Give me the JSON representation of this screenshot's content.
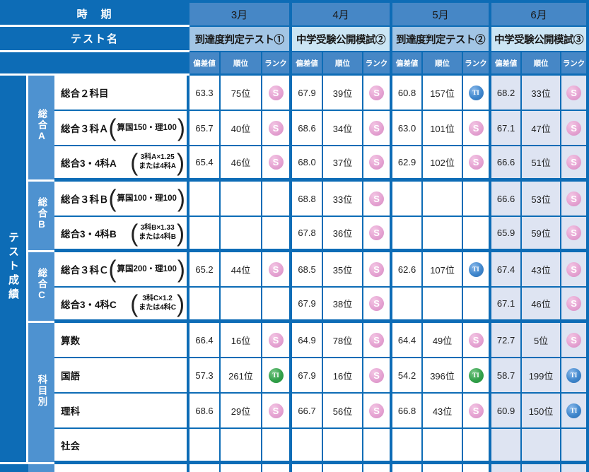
{
  "table": {
    "period_label": "時　期",
    "test_name_label": "テスト名",
    "results_label": "テスト成績",
    "metric_labels": [
      "偏差値",
      "順位",
      "ランク"
    ],
    "note_parens": [
      "(",
      ")"
    ],
    "months": [
      {
        "label": "3月",
        "test_name": "到達度判定テスト①",
        "tone": "medium"
      },
      {
        "label": "4月",
        "test_name": "中学受験公開模試②",
        "tone": "light"
      },
      {
        "label": "5月",
        "test_name": "到達度判定テスト②",
        "tone": "medium"
      },
      {
        "label": "6月",
        "test_name": "中学受験公開模試③",
        "tone": "light"
      }
    ],
    "groups": [
      {
        "label": "総合A",
        "rows": [
          0,
          1,
          2
        ]
      },
      {
        "label": "総合B",
        "rows": [
          3,
          4
        ]
      },
      {
        "label": "総合C",
        "rows": [
          5,
          6
        ]
      },
      {
        "label": "科目別",
        "rows": [
          7,
          8,
          9,
          10
        ]
      }
    ],
    "badges": {
      "S": {
        "text": "S",
        "color": "#e5a3d2"
      },
      "TI_BLUE": {
        "text": "TI",
        "color": "#3f86cc"
      },
      "TI_GREEN": {
        "text": "TI",
        "color": "#33a04a"
      }
    },
    "rows": [
      {
        "label": "総合２科目",
        "note_lines": [],
        "cells": [
          {
            "dev": "63.3",
            "rank": "75位",
            "badge": "S"
          },
          {
            "dev": "67.9",
            "rank": "39位",
            "badge": "S"
          },
          {
            "dev": "60.8",
            "rank": "157位",
            "badge": "TI_BLUE"
          },
          {
            "dev": "68.2",
            "rank": "33位",
            "badge": "S"
          }
        ]
      },
      {
        "label": "総合３科Ａ",
        "note_lines": [
          "算国150・理100"
        ],
        "cells": [
          {
            "dev": "65.7",
            "rank": "40位",
            "badge": "S"
          },
          {
            "dev": "68.6",
            "rank": "34位",
            "badge": "S"
          },
          {
            "dev": "63.0",
            "rank": "101位",
            "badge": "S"
          },
          {
            "dev": "67.1",
            "rank": "47位",
            "badge": "S"
          }
        ]
      },
      {
        "label": "総合3・4科A",
        "note_lines": [
          "3科A×1.25",
          "または4科A"
        ],
        "cells": [
          {
            "dev": "65.4",
            "rank": "46位",
            "badge": "S"
          },
          {
            "dev": "68.0",
            "rank": "37位",
            "badge": "S"
          },
          {
            "dev": "62.9",
            "rank": "102位",
            "badge": "S"
          },
          {
            "dev": "66.6",
            "rank": "51位",
            "badge": "S"
          }
        ]
      },
      {
        "label": "総合３科Ｂ",
        "note_lines": [
          "算国100・理100"
        ],
        "cells": [
          {
            "dev": "",
            "rank": "",
            "badge": ""
          },
          {
            "dev": "68.8",
            "rank": "33位",
            "badge": "S"
          },
          {
            "dev": "",
            "rank": "",
            "badge": ""
          },
          {
            "dev": "66.6",
            "rank": "53位",
            "badge": "S"
          }
        ]
      },
      {
        "label": "総合3・4科B",
        "note_lines": [
          "3科B×1.33",
          "または4科B"
        ],
        "cells": [
          {
            "dev": "",
            "rank": "",
            "badge": ""
          },
          {
            "dev": "67.8",
            "rank": "36位",
            "badge": "S"
          },
          {
            "dev": "",
            "rank": "",
            "badge": ""
          },
          {
            "dev": "65.9",
            "rank": "59位",
            "badge": "S"
          }
        ]
      },
      {
        "label": "総合３科Ｃ",
        "note_lines": [
          "算国200・理100"
        ],
        "cells": [
          {
            "dev": "65.2",
            "rank": "44位",
            "badge": "S"
          },
          {
            "dev": "68.5",
            "rank": "35位",
            "badge": "S"
          },
          {
            "dev": "62.6",
            "rank": "107位",
            "badge": "TI_BLUE"
          },
          {
            "dev": "67.4",
            "rank": "43位",
            "badge": "S"
          }
        ]
      },
      {
        "label": "総合3・4科C",
        "note_lines": [
          "3科C×1.2",
          "または4科C"
        ],
        "cells": [
          {
            "dev": "",
            "rank": "",
            "badge": ""
          },
          {
            "dev": "67.9",
            "rank": "38位",
            "badge": "S"
          },
          {
            "dev": "",
            "rank": "",
            "badge": ""
          },
          {
            "dev": "67.1",
            "rank": "46位",
            "badge": "S"
          }
        ]
      },
      {
        "label": "算数",
        "note_lines": [],
        "cells": [
          {
            "dev": "66.4",
            "rank": "16位",
            "badge": "S"
          },
          {
            "dev": "64.9",
            "rank": "78位",
            "badge": "S"
          },
          {
            "dev": "64.4",
            "rank": "49位",
            "badge": "S"
          },
          {
            "dev": "72.7",
            "rank": "5位",
            "badge": "S"
          }
        ]
      },
      {
        "label": "国語",
        "note_lines": [],
        "cells": [
          {
            "dev": "57.3",
            "rank": "261位",
            "badge": "TI_GREEN"
          },
          {
            "dev": "67.9",
            "rank": "16位",
            "badge": "S"
          },
          {
            "dev": "54.2",
            "rank": "396位",
            "badge": "TI_GREEN"
          },
          {
            "dev": "58.7",
            "rank": "199位",
            "badge": "TI_BLUE"
          }
        ]
      },
      {
        "label": "理科",
        "note_lines": [],
        "cells": [
          {
            "dev": "68.6",
            "rank": "29位",
            "badge": "S"
          },
          {
            "dev": "66.7",
            "rank": "56位",
            "badge": "S"
          },
          {
            "dev": "66.8",
            "rank": "43位",
            "badge": "S"
          },
          {
            "dev": "60.9",
            "rank": "150位",
            "badge": "TI_BLUE"
          }
        ]
      },
      {
        "label": "社会",
        "note_lines": [],
        "cells": [
          {
            "dev": "",
            "rank": "",
            "badge": ""
          },
          {
            "dev": "",
            "rank": "",
            "badge": ""
          },
          {
            "dev": "",
            "rank": "",
            "badge": ""
          },
          {
            "dev": "",
            "rank": "",
            "badge": ""
          }
        ]
      }
    ]
  },
  "colors": {
    "frame_blue": "#0d6cb6",
    "header_blue": "#4687c6",
    "group_blue": "#4e92d0",
    "test_a_bg": "#a2c5e5",
    "test_b_bg": "#cbe5f4",
    "june_tint": "#dee4f2",
    "badge_pink": "#e5a3d2",
    "badge_blue": "#3f86cc",
    "badge_green": "#33a04a",
    "text_dark": "#1a1a1a"
  }
}
